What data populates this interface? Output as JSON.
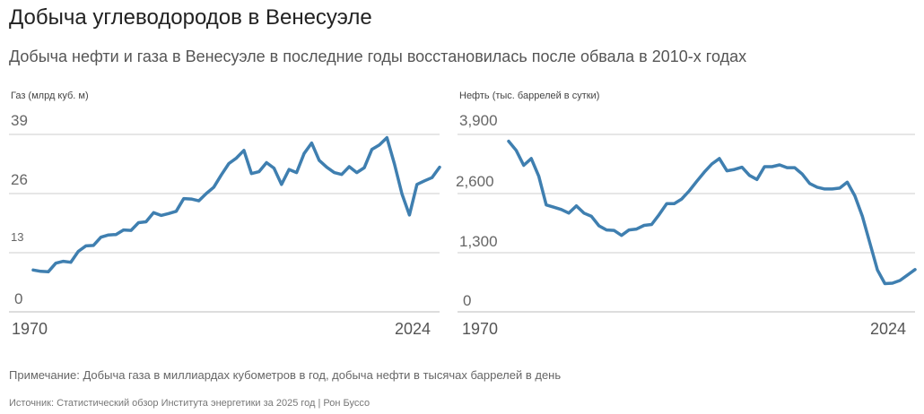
{
  "title": "Добыча углеводородов в Венесуэле",
  "subtitle": "Добыча нефти и газа в Венесуэле в последние годы восстановилась после обвала в 2010-х годах",
  "note": "Примечание: Добыча газа в миллиардах кубометров в год, добыча нефти в тысячах баррелей в день",
  "source": "Источник: Статистический обзор Института энергетики за 2025 год | Рон Буссо",
  "colors": {
    "line": "#3f7fb0",
    "grid": "#cccccc",
    "baseline": "#bbbbbb"
  },
  "chart_data": [
    {
      "type": "line",
      "ylabel": "Газ (млрд куб. м)",
      "yticks": [
        "39",
        "26",
        "13",
        "0"
      ],
      "ylim": [
        0,
        39
      ],
      "xticks": [
        "1970",
        "2024"
      ],
      "xlim": [
        1970,
        2024
      ],
      "x": [
        1970,
        1971,
        1972,
        1973,
        1974,
        1975,
        1976,
        1977,
        1978,
        1979,
        1980,
        1981,
        1982,
        1983,
        1984,
        1985,
        1986,
        1987,
        1988,
        1989,
        1990,
        1991,
        1992,
        1993,
        1994,
        1995,
        1996,
        1997,
        1998,
        1999,
        2000,
        2001,
        2002,
        2003,
        2004,
        2005,
        2006,
        2007,
        2008,
        2009,
        2010,
        2011,
        2012,
        2013,
        2014,
        2015,
        2016,
        2017,
        2018,
        2019,
        2020,
        2021,
        2022,
        2023,
        2024
      ],
      "series": [
        {
          "values": [
            9.2,
            8.9,
            8.8,
            10.7,
            11.1,
            10.9,
            13.3,
            14.5,
            14.6,
            16.4,
            16.9,
            17.0,
            18.0,
            17.9,
            19.6,
            19.8,
            21.8,
            21.2,
            21.6,
            22.1,
            24.9,
            24.8,
            24.4,
            26.0,
            27.4,
            30.1,
            32.6,
            33.8,
            35.5,
            30.4,
            30.8,
            32.8,
            31.6,
            28.0,
            31.3,
            30.6,
            34.8,
            37.1,
            33.3,
            31.8,
            30.6,
            30.2,
            31.9,
            30.6,
            31.7,
            35.7,
            36.7,
            38.3,
            32.5,
            25.9,
            21.3,
            28.0,
            28.8,
            29.5,
            31.8
          ]
        }
      ]
    },
    {
      "type": "line",
      "ylabel": "Нефть (тыс. баррелей в сутки)",
      "yticks": [
        "3,900",
        "2,600",
        "1,300",
        "0"
      ],
      "ylim": [
        0,
        3900
      ],
      "xticks": [
        "1970",
        "2024"
      ],
      "xlim": [
        1970,
        2024
      ],
      "x": [
        1970,
        1971,
        1972,
        1973,
        1974,
        1975,
        1976,
        1977,
        1978,
        1979,
        1980,
        1981,
        1982,
        1983,
        1984,
        1985,
        1986,
        1987,
        1988,
        1989,
        1990,
        1991,
        1992,
        1993,
        1994,
        1995,
        1996,
        1997,
        1998,
        1999,
        2000,
        2001,
        2002,
        2003,
        2004,
        2005,
        2006,
        2007,
        2008,
        2009,
        2010,
        2011,
        2012,
        2013,
        2014,
        2015,
        2016,
        2017,
        2018,
        2019,
        2020,
        2021,
        2022,
        2023,
        2024
      ],
      "series": [
        {
          "values": [
            3750,
            3550,
            3220,
            3370,
            2980,
            2350,
            2300,
            2250,
            2170,
            2330,
            2170,
            2100,
            1890,
            1800,
            1790,
            1680,
            1800,
            1820,
            1900,
            1920,
            2140,
            2380,
            2380,
            2480,
            2660,
            2870,
            3070,
            3250,
            3370,
            3100,
            3130,
            3180,
            3000,
            2910,
            3190,
            3190,
            3230,
            3170,
            3170,
            3030,
            2820,
            2740,
            2700,
            2700,
            2720,
            2850,
            2550,
            2100,
            1510,
            920,
            620,
            630,
            690,
            810,
            930
          ]
        }
      ]
    }
  ]
}
